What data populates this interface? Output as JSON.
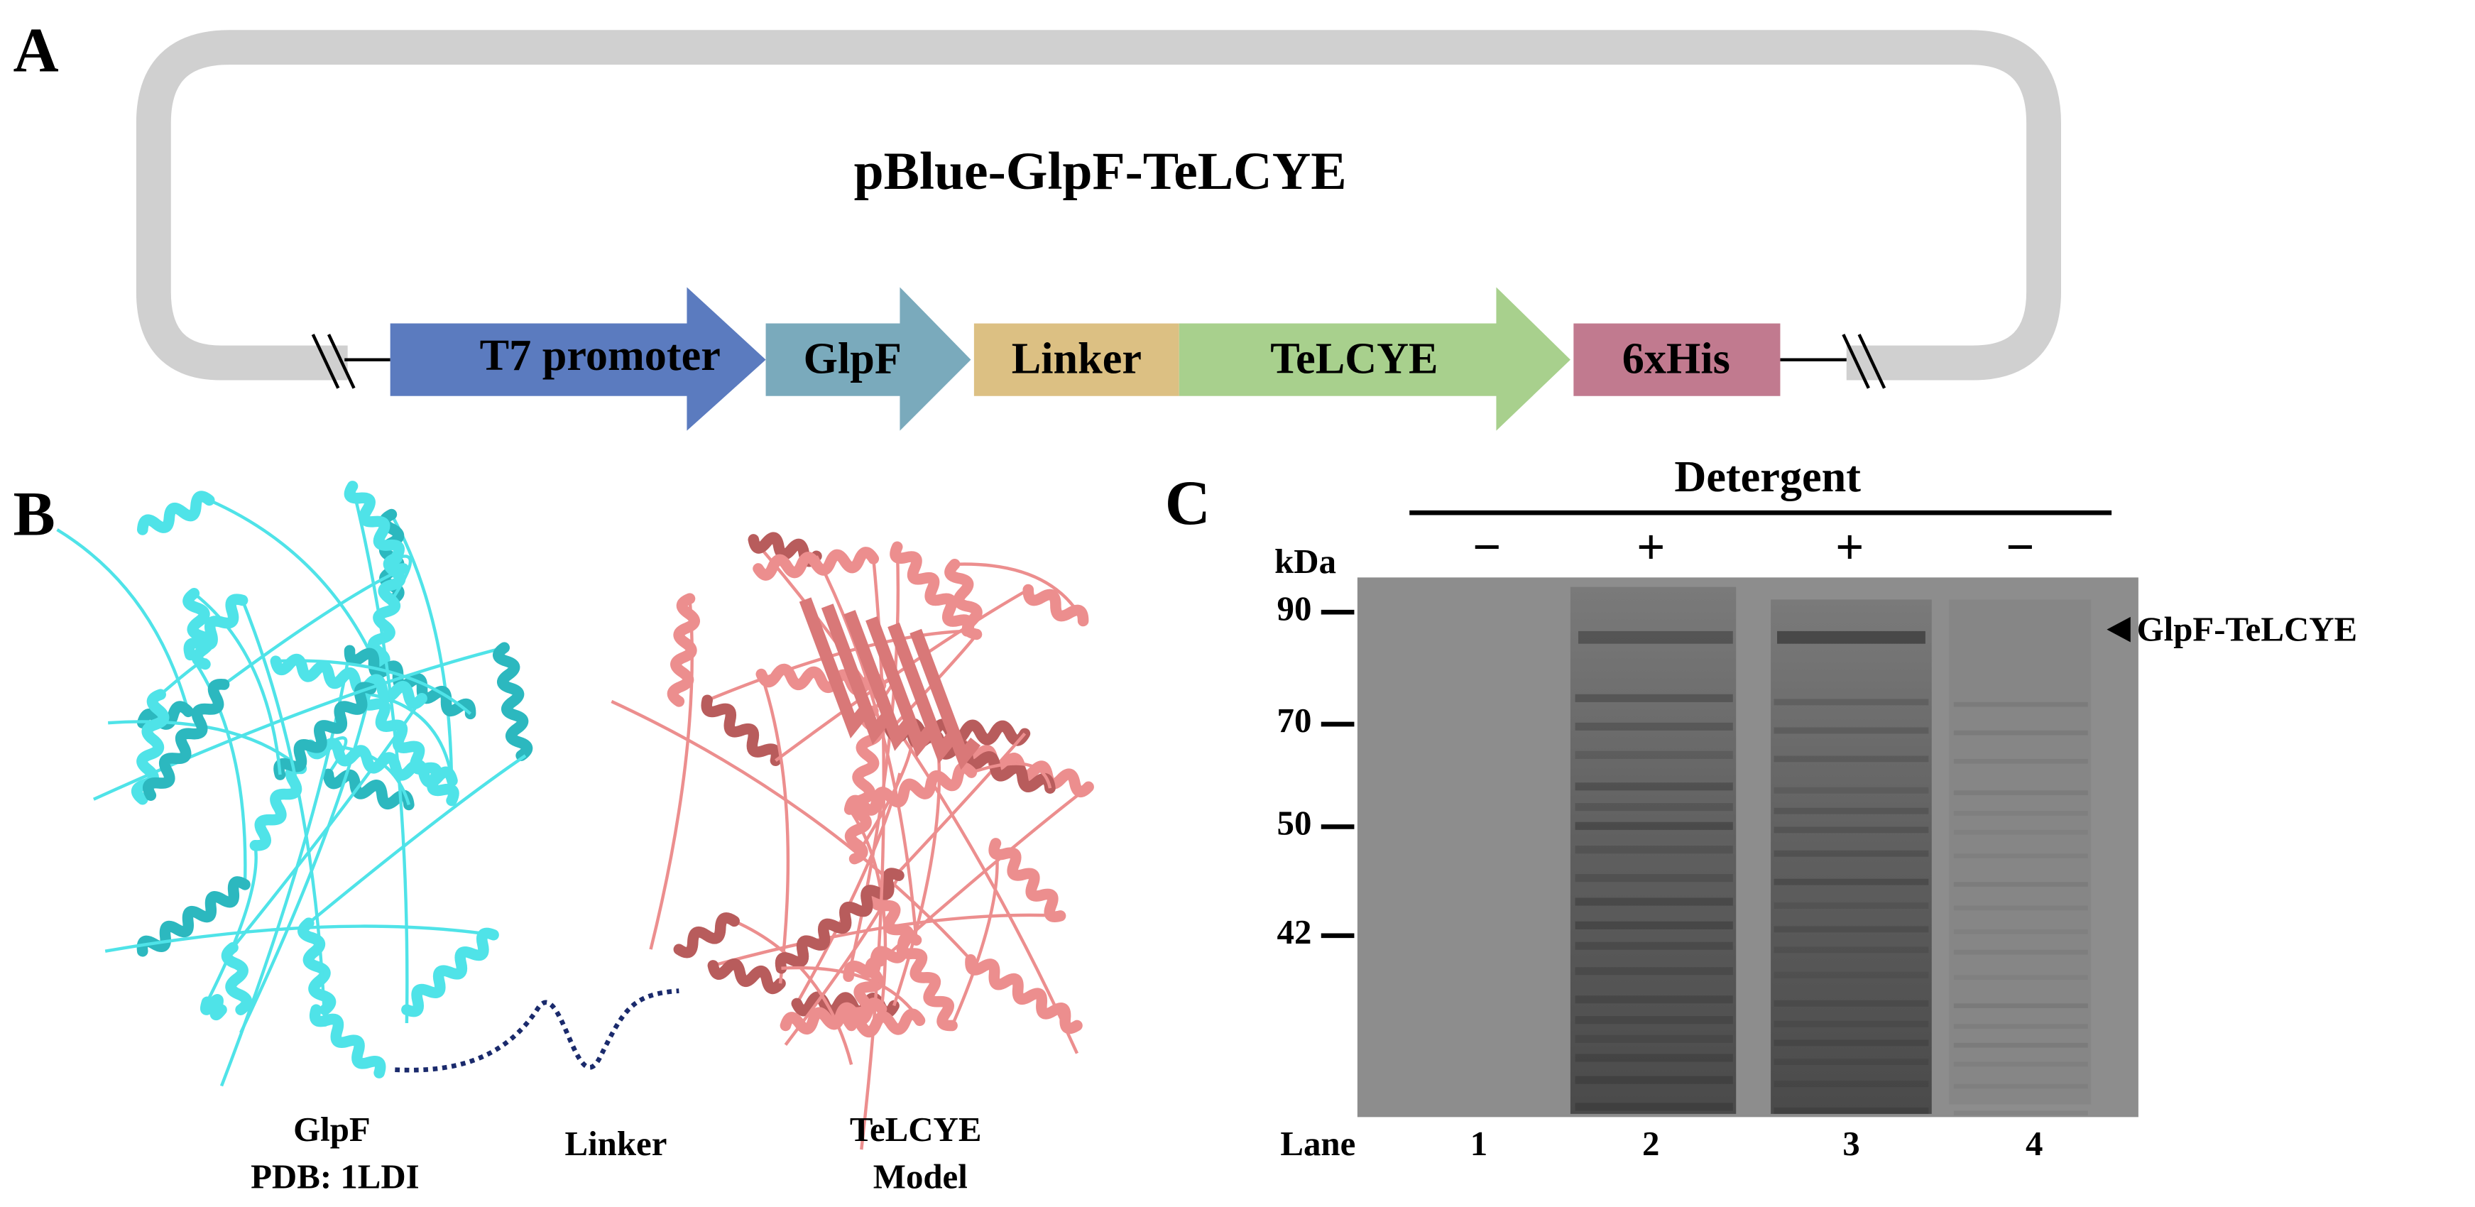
{
  "panel_a": {
    "label": "A",
    "plasmid": "pBlue-GlpF-TeLCYE",
    "elements": [
      "T7 promoter",
      "GlpF",
      "Linker",
      "TeLCYE",
      "6xHis"
    ]
  },
  "panel_b": {
    "label": "B",
    "glpf": "GlpF",
    "pdb": "PDB: 1LDI",
    "linker": "Linker",
    "telcye": "TeLCYE",
    "model": "Model"
  },
  "panel_c": {
    "label": "C",
    "detergent": "Detergent",
    "signs": [
      "−",
      "+",
      "+",
      "−"
    ],
    "kda": "kDa",
    "markers": [
      90,
      70,
      50,
      42
    ],
    "band": "GlpF-TeLCYE",
    "lane": "Lane",
    "lanes": [
      1,
      2,
      3,
      4
    ]
  }
}
